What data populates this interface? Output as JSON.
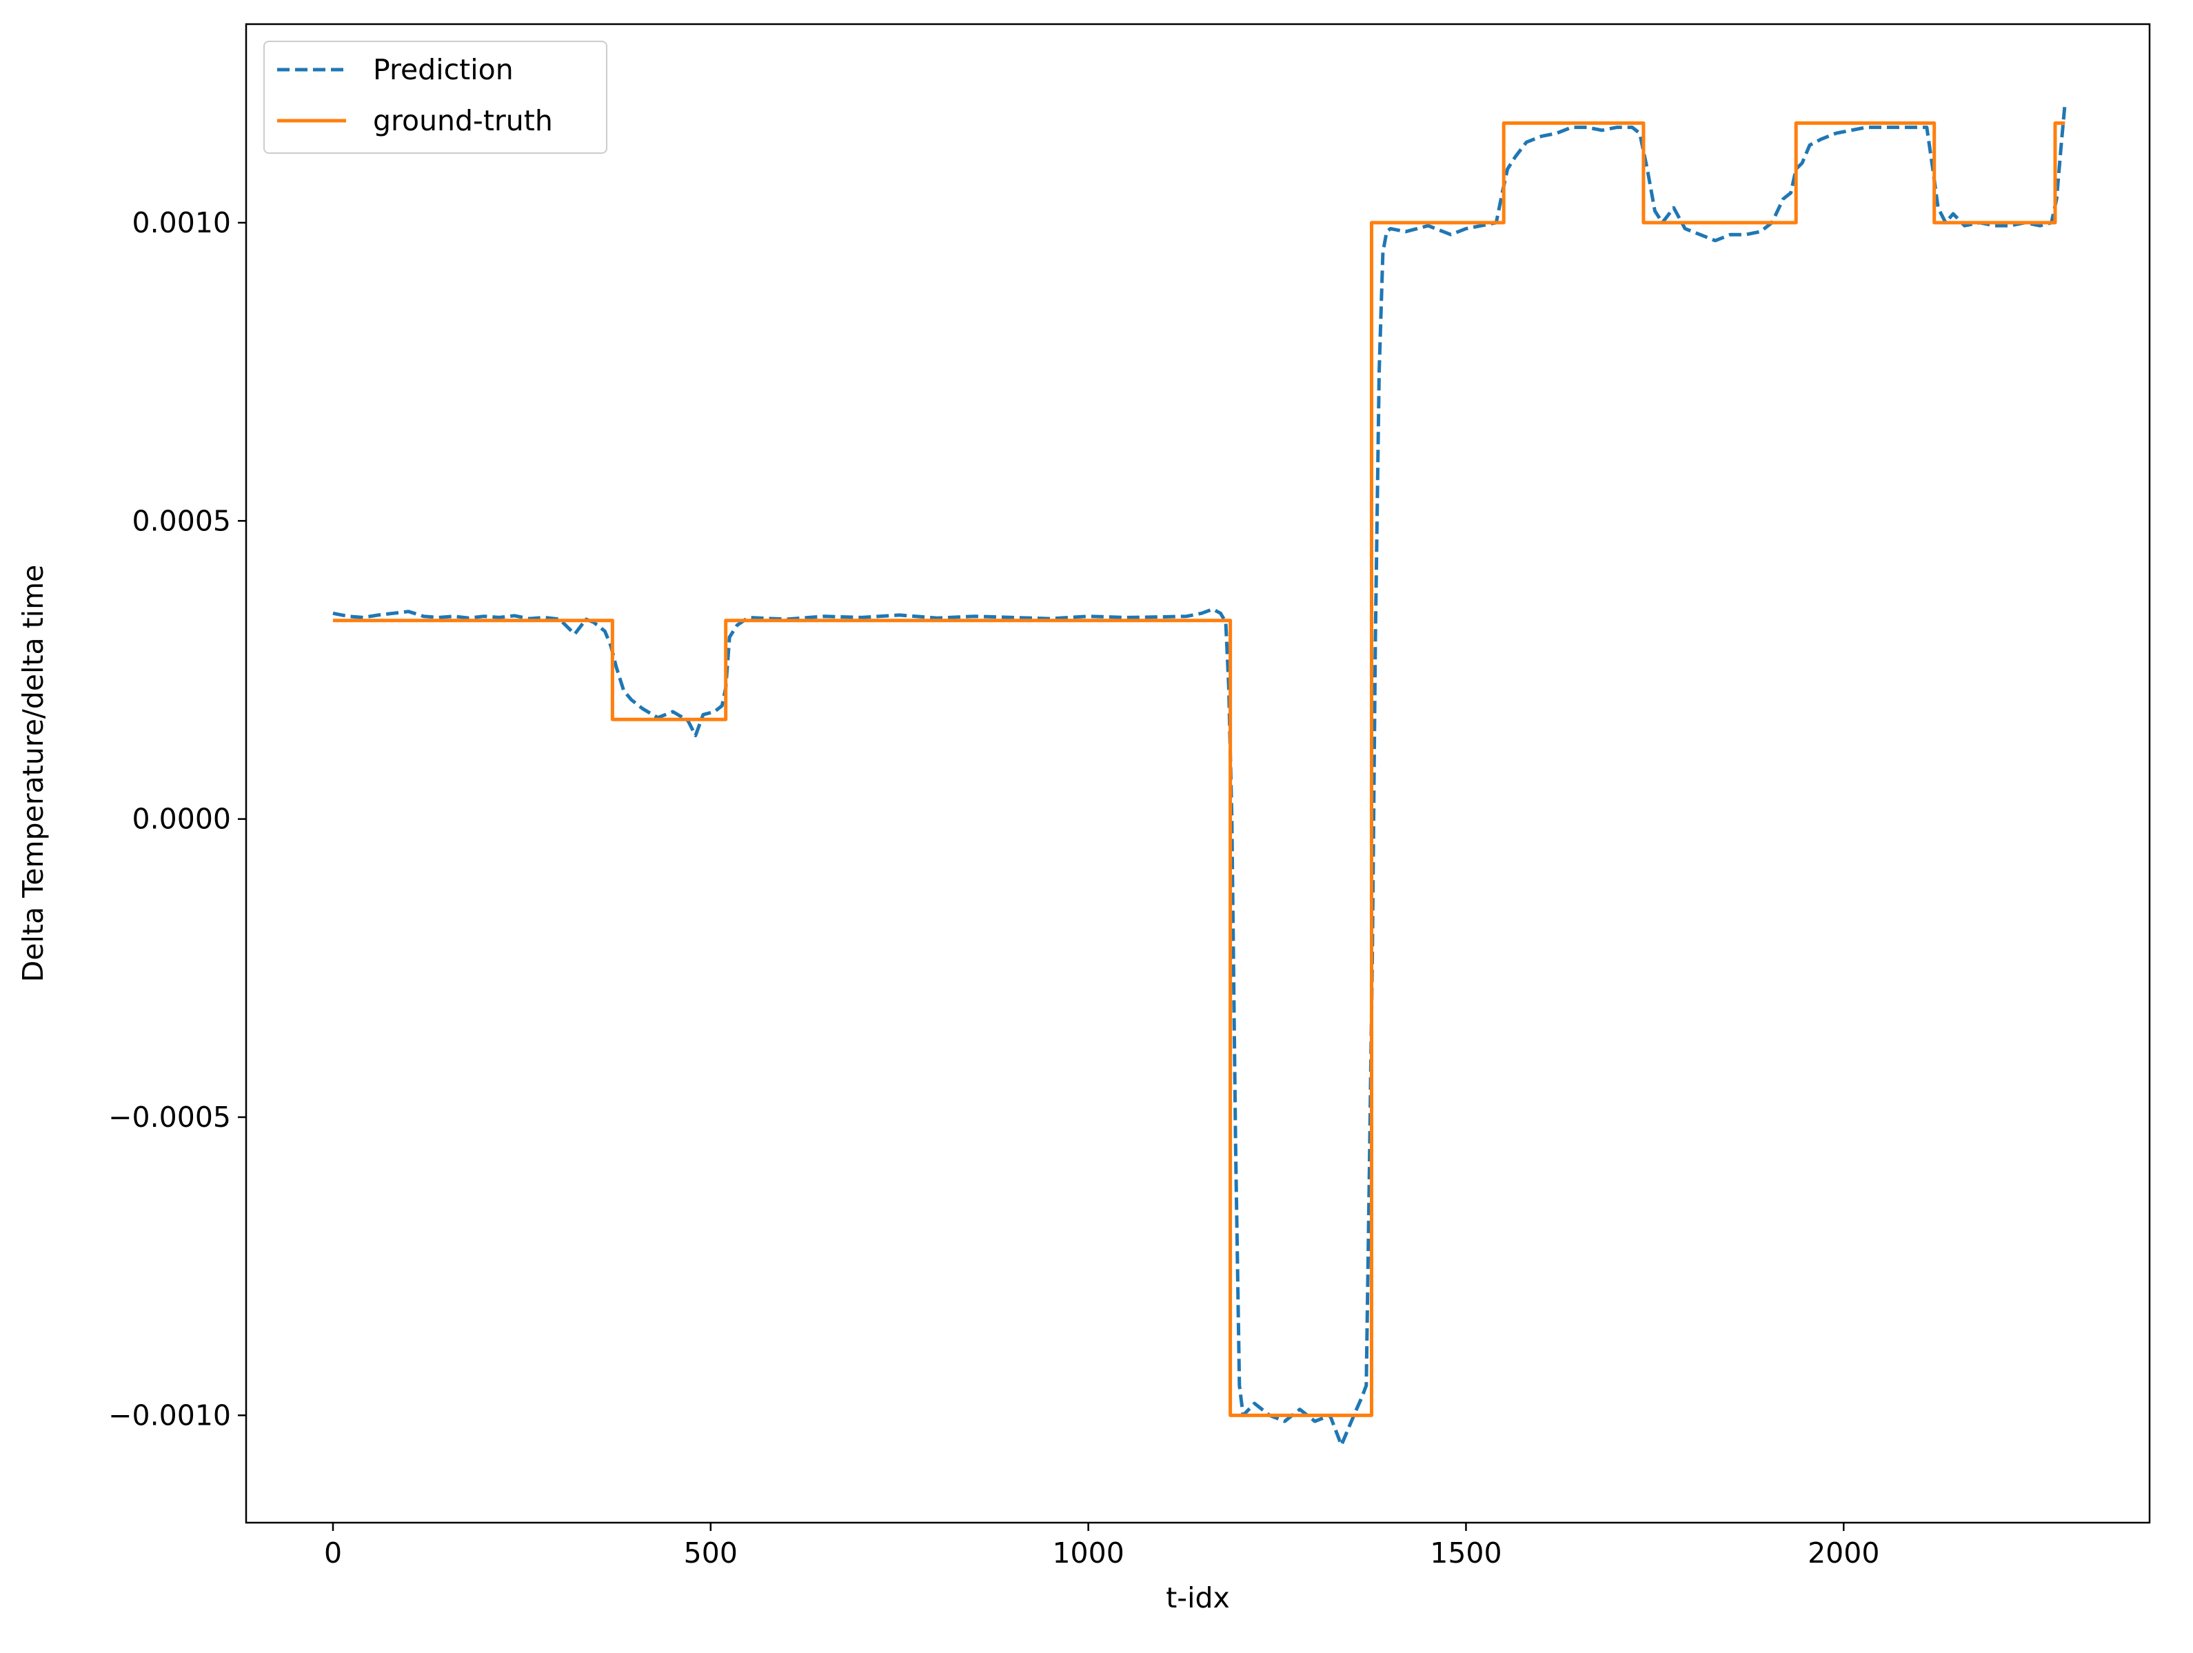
{
  "chart_data": {
    "type": "line",
    "title": "",
    "xlabel": "t-idx",
    "ylabel": "Delta Temperature/delta time",
    "xlim": [
      -115,
      2405
    ],
    "ylim": [
      -0.00118,
      0.001333
    ],
    "xticks": [
      0,
      500,
      1000,
      1500,
      2000
    ],
    "xtick_labels": [
      "0",
      "500",
      "1000",
      "1500",
      "2000"
    ],
    "yticks": [
      -0.001,
      -0.0005,
      0.0,
      0.0005,
      0.001
    ],
    "ytick_labels": [
      "−0.0010",
      "−0.0005",
      "0.0000",
      "0.0005",
      "0.0010"
    ],
    "grid": false,
    "legend_position": "top-left",
    "series": [
      {
        "name": "Prediction",
        "style": "dashed",
        "color": "#1f77b4",
        "x": [
          0,
          20,
          40,
          60,
          80,
          100,
          120,
          140,
          160,
          180,
          200,
          220,
          240,
          260,
          280,
          300,
          320,
          335,
          345,
          360,
          368,
          375,
          385,
          395,
          410,
          430,
          450,
          470,
          480,
          490,
          505,
          515,
          520,
          525,
          535,
          550,
          600,
          650,
          700,
          750,
          800,
          850,
          900,
          950,
          1000,
          1050,
          1100,
          1130,
          1150,
          1165,
          1175,
          1182,
          1186,
          1190,
          1195,
          1200,
          1205,
          1220,
          1240,
          1260,
          1280,
          1300,
          1320,
          1335,
          1345,
          1355,
          1362,
          1368,
          1372,
          1376,
          1380,
          1385,
          1390,
          1395,
          1400,
          1420,
          1450,
          1480,
          1500,
          1520,
          1540,
          1548,
          1555,
          1565,
          1580,
          1600,
          1620,
          1640,
          1660,
          1680,
          1700,
          1720,
          1730,
          1740,
          1750,
          1760,
          1775,
          1790,
          1810,
          1830,
          1850,
          1870,
          1890,
          1905,
          1920,
          1930,
          1937,
          1945,
          1955,
          1970,
          1990,
          2010,
          2030,
          2050,
          2070,
          2090,
          2110,
          2118,
          2125,
          2135,
          2145,
          2160,
          2180,
          2200,
          2220,
          2240,
          2260,
          2275,
          2282,
          2288,
          2293
        ],
        "y": [
          0.000345,
          0.00034,
          0.000338,
          0.000342,
          0.000345,
          0.000348,
          0.00034,
          0.000338,
          0.00034,
          0.000337,
          0.00034,
          0.000338,
          0.000341,
          0.000336,
          0.000338,
          0.000335,
          0.00031,
          0.000335,
          0.00033,
          0.000315,
          0.00029,
          0.000255,
          0.000215,
          0.0002,
          0.000185,
          0.00017,
          0.00018,
          0.000165,
          0.00014,
          0.000175,
          0.00018,
          0.00019,
          0.00022,
          0.000305,
          0.000325,
          0.000338,
          0.000335,
          0.00034,
          0.000338,
          0.000342,
          0.000337,
          0.00034,
          0.000338,
          0.000336,
          0.00034,
          0.000338,
          0.000339,
          0.00034,
          0.000345,
          0.000352,
          0.000345,
          0.00033,
          0.00022,
          0.0,
          -0.00055,
          -0.00095,
          -0.001,
          -0.00098,
          -0.001,
          -0.00101,
          -0.00099,
          -0.00101,
          -0.001,
          -0.00105,
          -0.00102,
          -0.00099,
          -0.00097,
          -0.00095,
          -0.0006,
          -0.00023,
          0.0003,
          0.00075,
          0.00095,
          0.000985,
          0.00099,
          0.000985,
          0.000995,
          0.00098,
          0.00099,
          0.000995,
          0.001,
          0.00105,
          0.00109,
          0.00111,
          0.001135,
          0.001145,
          0.00115,
          0.00116,
          0.00116,
          0.001155,
          0.00116,
          0.00116,
          0.00115,
          0.00109,
          0.00102,
          0.001,
          0.001025,
          0.00099,
          0.00098,
          0.00097,
          0.00098,
          0.00098,
          0.000985,
          0.001,
          0.00104,
          0.00105,
          0.00109,
          0.0011,
          0.00113,
          0.00114,
          0.00115,
          0.001155,
          0.00116,
          0.00116,
          0.00116,
          0.00116,
          0.00116,
          0.00109,
          0.001025,
          0.001,
          0.001015,
          0.000995,
          0.001,
          0.000995,
          0.000995,
          0.001,
          0.000995,
          0.001,
          0.00104,
          0.00113,
          0.0012
        ]
      },
      {
        "name": "ground-truth",
        "style": "solid",
        "color": "#ff7f0e",
        "x": [
          0,
          370,
          370,
          520,
          520,
          1188,
          1188,
          1375,
          1375,
          1550,
          1550,
          1735,
          1735,
          1937,
          1937,
          2120,
          2120,
          2280,
          2280,
          2293
        ],
        "y": [
          0.000333,
          0.000333,
          0.000167,
          0.000167,
          0.000333,
          0.000333,
          -0.001,
          -0.001,
          0.001,
          0.001,
          0.001167,
          0.001167,
          0.001,
          0.001,
          0.001167,
          0.001167,
          0.001,
          0.001,
          0.001167,
          0.001167
        ]
      }
    ]
  }
}
